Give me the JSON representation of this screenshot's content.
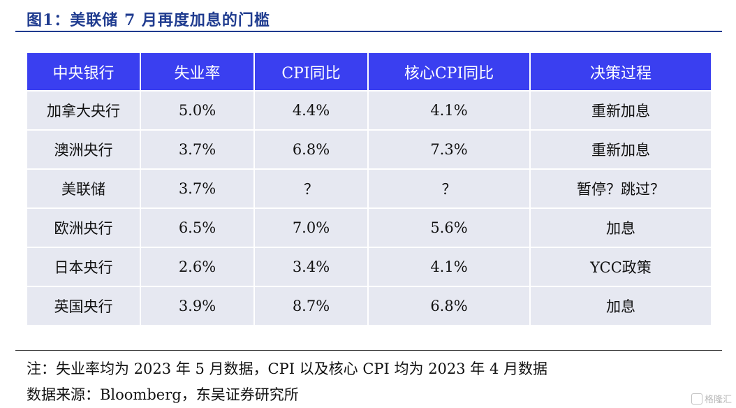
{
  "figure": {
    "title": "图1：美联储 7 月再度加息的门槛"
  },
  "table": {
    "headers": [
      "中央银行",
      "失业率",
      "CPI同比",
      "核心CPI同比",
      "决策过程"
    ],
    "rows": [
      [
        "加拿大央行",
        "5.0%",
        "4.4%",
        "4.1%",
        "重新加息"
      ],
      [
        "澳洲央行",
        "3.7%",
        "6.8%",
        "7.3%",
        "重新加息"
      ],
      [
        "美联储",
        "3.7%",
        "？",
        "？",
        "暂停？跳过？"
      ],
      [
        "欧洲央行",
        "6.5%",
        "7.0%",
        "5.6%",
        "加息"
      ],
      [
        "日本央行",
        "2.6%",
        "3.4%",
        "4.1%",
        "YCC政策"
      ],
      [
        "英国央行",
        "3.9%",
        "8.7%",
        "6.8%",
        "加息"
      ]
    ]
  },
  "notes": {
    "note": "注：失业率均为 2023 年 5 月数据，CPI 以及核心 CPI 均为 2023 年 4 月数据",
    "source": "数据来源：Bloomberg，东吴证券研究所"
  },
  "watermark": {
    "text": "格隆汇",
    "icon": "gelonghui-logo-icon"
  },
  "colors": {
    "header_bg": "#3a3ff0",
    "cell_bg": "#e6e8f1",
    "title": "#1f3b8f"
  }
}
